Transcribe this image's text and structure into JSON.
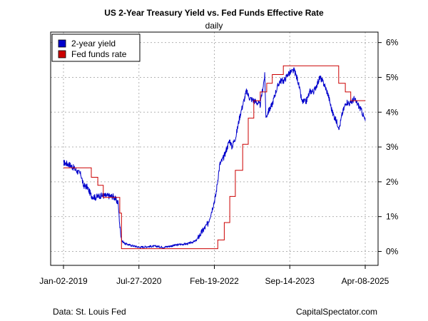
{
  "chart_data": {
    "type": "line",
    "title": "US 2-Year Treasury Yield vs. Fed Funds Effective Rate",
    "subtitle": "daily",
    "xlabel": "",
    "ylabel": "",
    "x_tick_labels": [
      "Jan-02-2019",
      "Jul-27-2020",
      "Feb-19-2022",
      "Sep-14-2023",
      "Apr-08-2025"
    ],
    "x_range": [
      "2019-01-02",
      "2025-04-08"
    ],
    "y_axis_side": "right",
    "y_tick_values": [
      0,
      1,
      2,
      3,
      4,
      5,
      6
    ],
    "y_tick_labels": [
      "0%",
      "1%",
      "2%",
      "3%",
      "4%",
      "5%",
      "6%"
    ],
    "ylim": [
      -0.4,
      6.3
    ],
    "grid": true,
    "legend_position": "top-left",
    "series": [
      {
        "name": "2-year yield",
        "color": "#0000cc",
        "x": [
          "2019-01-02",
          "2019-02-15",
          "2019-03-20",
          "2019-05-15",
          "2019-06-01",
          "2019-07-01",
          "2019-08-01",
          "2019-09-01",
          "2019-10-01",
          "2019-11-15",
          "2020-01-15",
          "2020-02-20",
          "2020-03-05",
          "2020-03-20",
          "2020-04-15",
          "2020-06-01",
          "2020-08-01",
          "2020-10-01",
          "2020-12-01",
          "2021-02-01",
          "2021-04-01",
          "2021-06-01",
          "2021-08-01",
          "2021-10-01",
          "2021-11-15",
          "2022-01-01",
          "2022-02-01",
          "2022-03-01",
          "2022-04-01",
          "2022-05-01",
          "2022-06-15",
          "2022-07-01",
          "2022-08-01",
          "2022-09-01",
          "2022-10-20",
          "2022-11-15",
          "2023-01-01",
          "2023-02-01",
          "2023-03-08",
          "2023-03-17",
          "2023-04-01",
          "2023-05-01",
          "2023-06-01",
          "2023-07-01",
          "2023-08-01",
          "2023-09-01",
          "2023-10-18",
          "2023-11-15",
          "2023-12-15",
          "2024-01-15",
          "2024-02-15",
          "2024-03-15",
          "2024-04-30",
          "2024-06-01",
          "2024-07-01",
          "2024-08-01",
          "2024-09-24",
          "2024-10-15",
          "2024-11-15",
          "2024-12-15",
          "2025-01-13",
          "2025-02-15",
          "2025-03-15",
          "2025-04-08"
        ],
        "values": [
          2.55,
          2.5,
          2.4,
          2.2,
          1.9,
          1.85,
          1.6,
          1.55,
          1.6,
          1.6,
          1.58,
          1.4,
          0.7,
          0.3,
          0.22,
          0.17,
          0.12,
          0.14,
          0.15,
          0.12,
          0.16,
          0.2,
          0.22,
          0.3,
          0.55,
          0.8,
          1.2,
          1.6,
          2.5,
          2.7,
          3.2,
          3.0,
          3.3,
          3.9,
          4.6,
          4.4,
          4.3,
          4.2,
          5.05,
          3.85,
          4.0,
          4.2,
          4.6,
          4.9,
          4.9,
          5.1,
          5.2,
          4.9,
          4.3,
          4.3,
          4.6,
          4.6,
          5.0,
          4.8,
          4.5,
          4.0,
          3.55,
          3.95,
          4.3,
          4.25,
          4.38,
          4.2,
          4.0,
          3.75
        ]
      },
      {
        "name": "Fed funds rate",
        "color": "#cc0000",
        "step": true,
        "x": [
          "2019-01-02",
          "2019-08-01",
          "2019-09-19",
          "2019-10-31",
          "2020-03-04",
          "2020-03-17",
          "2022-03-17",
          "2022-05-05",
          "2022-06-16",
          "2022-07-28",
          "2022-09-22",
          "2022-11-03",
          "2022-12-15",
          "2023-02-02",
          "2023-03-23",
          "2023-05-04",
          "2023-07-27",
          "2024-09-19",
          "2024-11-08",
          "2024-12-19",
          "2025-04-08"
        ],
        "values": [
          2.4,
          2.13,
          1.9,
          1.55,
          1.1,
          0.08,
          0.33,
          0.83,
          1.58,
          2.33,
          3.08,
          3.83,
          4.33,
          4.58,
          4.83,
          5.08,
          5.33,
          4.83,
          4.58,
          4.33,
          4.33
        ]
      }
    ]
  },
  "footer": {
    "source": "Data: St. Louis Fed",
    "credit": "CapitalSpectator.com"
  }
}
